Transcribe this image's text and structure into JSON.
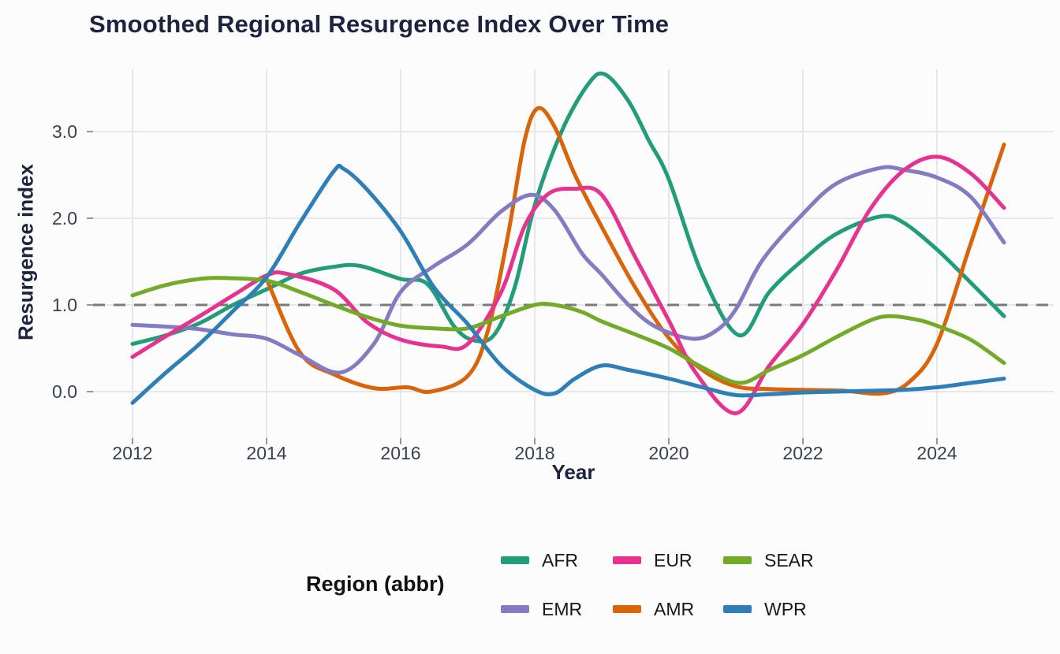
{
  "chart_data": {
    "type": "line",
    "title": "Smoothed Regional Resurgence Index Over Time",
    "xlabel": "Year",
    "ylabel": "Resurgence index",
    "x_domain": [
      2012,
      2025
    ],
    "ylim": [
      -0.5,
      3.7
    ],
    "x_ticks": [
      2012,
      2014,
      2016,
      2018,
      2020,
      2022,
      2024
    ],
    "x_tick_labels": [
      "2012",
      "2014",
      "2016",
      "2018",
      "2020",
      "2022",
      "2024"
    ],
    "y_ticks": [
      0,
      1,
      2,
      3
    ],
    "y_tick_labels": [
      "0.0",
      "1.0",
      "2.0",
      "3.0"
    ],
    "grid": true,
    "legend_position": "bottom",
    "ref_line": {
      "y": 1.0,
      "style": "dashed",
      "color": "#7a7a7a"
    },
    "series": [
      {
        "name": "AFR",
        "color": "#229d7a",
        "points": [
          [
            2012,
            0.55
          ],
          [
            2012.5,
            0.65
          ],
          [
            2013,
            0.79
          ],
          [
            2013.5,
            1.0
          ],
          [
            2014,
            1.18
          ],
          [
            2014.5,
            1.36
          ],
          [
            2015,
            1.44
          ],
          [
            2015.4,
            1.45
          ],
          [
            2016,
            1.3
          ],
          [
            2016.4,
            1.24
          ],
          [
            2016.8,
            0.75
          ],
          [
            2017.1,
            0.59
          ],
          [
            2017.4,
            0.66
          ],
          [
            2017.7,
            1.2
          ],
          [
            2018,
            2.15
          ],
          [
            2018.4,
            3.0
          ],
          [
            2018.8,
            3.55
          ],
          [
            2019.05,
            3.66
          ],
          [
            2019.4,
            3.35
          ],
          [
            2019.7,
            2.9
          ],
          [
            2020,
            2.45
          ],
          [
            2020.5,
            1.35
          ],
          [
            2021.05,
            0.65
          ],
          [
            2021.5,
            1.15
          ],
          [
            2022,
            1.52
          ],
          [
            2022.5,
            1.82
          ],
          [
            2023.15,
            2.02
          ],
          [
            2023.5,
            1.95
          ],
          [
            2024,
            1.64
          ],
          [
            2024.5,
            1.26
          ],
          [
            2025,
            0.87
          ]
        ]
      },
      {
        "name": "AMR",
        "color": "#d96409",
        "points": [
          [
            2014,
            1.3
          ],
          [
            2014.5,
            0.45
          ],
          [
            2015,
            0.2
          ],
          [
            2015.6,
            0.04
          ],
          [
            2016.1,
            0.05
          ],
          [
            2016.45,
            0.0
          ],
          [
            2017,
            0.18
          ],
          [
            2017.3,
            0.7
          ],
          [
            2017.6,
            1.8
          ],
          [
            2017.85,
            2.9
          ],
          [
            2018.05,
            3.27
          ],
          [
            2018.3,
            3.05
          ],
          [
            2018.6,
            2.5
          ],
          [
            2019,
            1.9
          ],
          [
            2019.5,
            1.2
          ],
          [
            2020,
            0.62
          ],
          [
            2020.5,
            0.25
          ],
          [
            2021,
            0.06
          ],
          [
            2021.5,
            0.03
          ],
          [
            2022,
            0.02
          ],
          [
            2022.6,
            0.01
          ],
          [
            2023.2,
            -0.02
          ],
          [
            2023.6,
            0.12
          ],
          [
            2024,
            0.55
          ],
          [
            2024.5,
            1.7
          ],
          [
            2025,
            2.85
          ]
        ]
      },
      {
        "name": "EMR",
        "color": "#837cc2",
        "points": [
          [
            2012,
            0.77
          ],
          [
            2012.5,
            0.75
          ],
          [
            2013,
            0.72
          ],
          [
            2013.5,
            0.66
          ],
          [
            2014,
            0.61
          ],
          [
            2014.5,
            0.42
          ],
          [
            2015.1,
            0.22
          ],
          [
            2015.6,
            0.55
          ],
          [
            2016,
            1.15
          ],
          [
            2016.5,
            1.45
          ],
          [
            2017,
            1.7
          ],
          [
            2017.5,
            2.08
          ],
          [
            2017.95,
            2.27
          ],
          [
            2018.3,
            2.09
          ],
          [
            2018.7,
            1.6
          ],
          [
            2019,
            1.35
          ],
          [
            2019.4,
            1.0
          ],
          [
            2019.8,
            0.75
          ],
          [
            2020.35,
            0.61
          ],
          [
            2020.7,
            0.7
          ],
          [
            2021,
            0.95
          ],
          [
            2021.4,
            1.52
          ],
          [
            2022,
            2.05
          ],
          [
            2022.5,
            2.4
          ],
          [
            2023.15,
            2.58
          ],
          [
            2023.5,
            2.56
          ],
          [
            2024,
            2.47
          ],
          [
            2024.5,
            2.25
          ],
          [
            2025,
            1.72
          ]
        ]
      },
      {
        "name": "EUR",
        "color": "#e73390",
        "points": [
          [
            2012,
            0.4
          ],
          [
            2012.5,
            0.64
          ],
          [
            2013,
            0.87
          ],
          [
            2013.5,
            1.11
          ],
          [
            2014,
            1.34
          ],
          [
            2014.3,
            1.36
          ],
          [
            2015,
            1.18
          ],
          [
            2015.5,
            0.8
          ],
          [
            2016,
            0.6
          ],
          [
            2016.6,
            0.52
          ],
          [
            2017,
            0.55
          ],
          [
            2017.5,
            1.15
          ],
          [
            2017.85,
            1.91
          ],
          [
            2018.2,
            2.28
          ],
          [
            2018.6,
            2.34
          ],
          [
            2019,
            2.27
          ],
          [
            2019.5,
            1.55
          ],
          [
            2020,
            0.82
          ],
          [
            2020.4,
            0.22
          ],
          [
            2021,
            -0.25
          ],
          [
            2021.5,
            0.3
          ],
          [
            2022,
            0.78
          ],
          [
            2022.5,
            1.4
          ],
          [
            2023,
            2.1
          ],
          [
            2023.5,
            2.55
          ],
          [
            2024,
            2.71
          ],
          [
            2024.5,
            2.52
          ],
          [
            2025,
            2.12
          ]
        ]
      },
      {
        "name": "SEAR",
        "color": "#73aa28",
        "points": [
          [
            2012,
            1.11
          ],
          [
            2012.5,
            1.23
          ],
          [
            2013,
            1.3
          ],
          [
            2013.4,
            1.31
          ],
          [
            2014,
            1.28
          ],
          [
            2014.5,
            1.15
          ],
          [
            2015,
            1.0
          ],
          [
            2015.5,
            0.86
          ],
          [
            2016,
            0.76
          ],
          [
            2016.5,
            0.73
          ],
          [
            2017,
            0.73
          ],
          [
            2017.5,
            0.87
          ],
          [
            2018,
            1.0
          ],
          [
            2018.3,
            1.0
          ],
          [
            2018.7,
            0.92
          ],
          [
            2019,
            0.81
          ],
          [
            2019.5,
            0.66
          ],
          [
            2020,
            0.5
          ],
          [
            2020.5,
            0.28
          ],
          [
            2021.05,
            0.1
          ],
          [
            2021.5,
            0.25
          ],
          [
            2022,
            0.42
          ],
          [
            2022.5,
            0.63
          ],
          [
            2023,
            0.82
          ],
          [
            2023.3,
            0.87
          ],
          [
            2023.7,
            0.83
          ],
          [
            2024,
            0.76
          ],
          [
            2024.5,
            0.6
          ],
          [
            2025,
            0.33
          ]
        ]
      },
      {
        "name": "WPR",
        "color": "#2e7eb8",
        "points": [
          [
            2012,
            -0.13
          ],
          [
            2012.5,
            0.22
          ],
          [
            2013,
            0.55
          ],
          [
            2013.5,
            0.93
          ],
          [
            2014,
            1.32
          ],
          [
            2014.5,
            1.95
          ],
          [
            2015,
            2.54
          ],
          [
            2015.15,
            2.57
          ],
          [
            2015.5,
            2.33
          ],
          [
            2016,
            1.85
          ],
          [
            2016.5,
            1.2
          ],
          [
            2017,
            0.78
          ],
          [
            2017.5,
            0.3
          ],
          [
            2018,
            0.02
          ],
          [
            2018.3,
            -0.02
          ],
          [
            2018.6,
            0.15
          ],
          [
            2019,
            0.3
          ],
          [
            2019.4,
            0.25
          ],
          [
            2020,
            0.15
          ],
          [
            2020.5,
            0.05
          ],
          [
            2021,
            -0.04
          ],
          [
            2021.5,
            -0.03
          ],
          [
            2022,
            -0.01
          ],
          [
            2022.5,
            0.0
          ],
          [
            2023,
            0.01
          ],
          [
            2023.5,
            0.02
          ],
          [
            2024,
            0.05
          ],
          [
            2024.5,
            0.1
          ],
          [
            2025,
            0.15
          ]
        ]
      }
    ],
    "legend": {
      "title": "Region (abbr)",
      "rows": [
        [
          "AFR",
          "EUR",
          "SEAR"
        ],
        [
          "EMR",
          "AMR",
          "WPR"
        ]
      ]
    }
  }
}
